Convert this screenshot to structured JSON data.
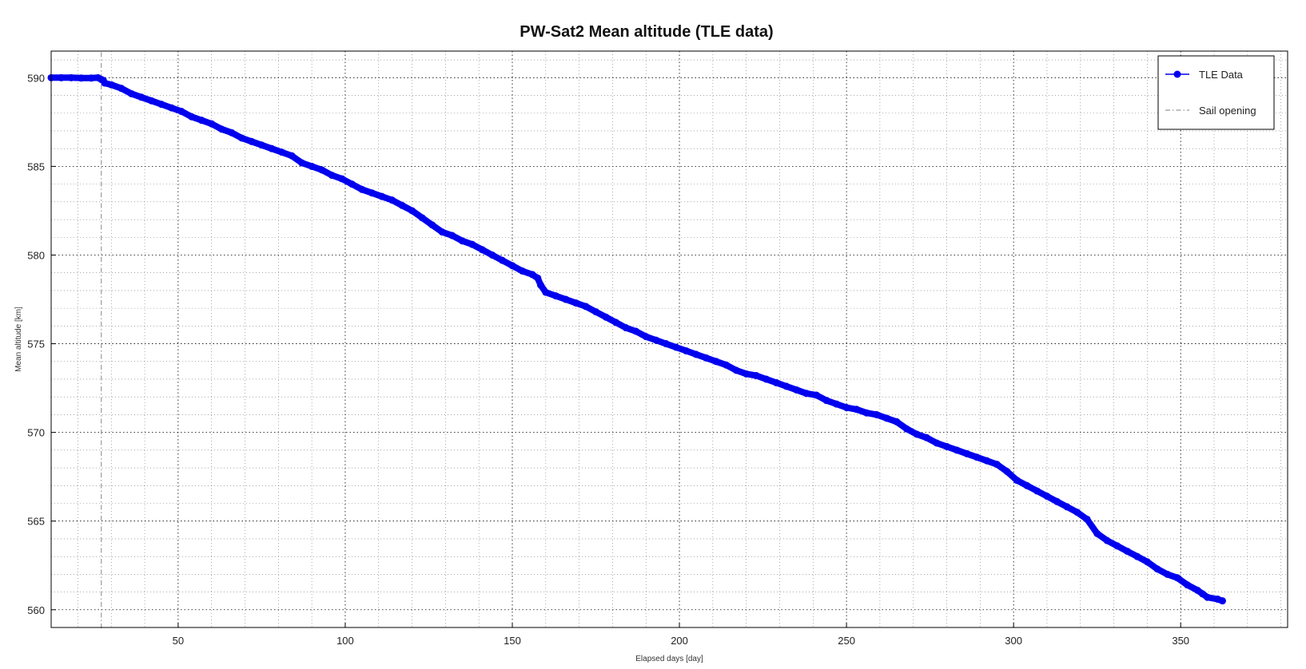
{
  "chart_data": {
    "type": "line",
    "title": "PW-Sat2 Mean altitude (TLE data)",
    "xlabel": "Elapsed days [day]",
    "ylabel": "Mean altitude [km]",
    "xlim": [
      12,
      382
    ],
    "ylim": [
      559,
      591.5
    ],
    "xticks": [
      50,
      100,
      150,
      200,
      250,
      300,
      350
    ],
    "yticks": [
      560,
      565,
      570,
      575,
      580,
      585,
      590
    ],
    "x_minor_step": 10,
    "y_minor_step": 1,
    "grid": true,
    "legend_position": "top-right",
    "series": [
      {
        "name": "TLE Data",
        "color": "#0000ee",
        "marker": "circle",
        "x": [
          12,
          15,
          18,
          21,
          24,
          26,
          27,
          27.6,
          28,
          30,
          33,
          36,
          39,
          42,
          45,
          48,
          51,
          54,
          57,
          60,
          63,
          66,
          69,
          72,
          75,
          78,
          81,
          84,
          87,
          90,
          93,
          96,
          99,
          102,
          105,
          108,
          111,
          114,
          117,
          120,
          123,
          126,
          129,
          132,
          135,
          138,
          141,
          144,
          147,
          150,
          153,
          156,
          157.6,
          158.5,
          160,
          163,
          166,
          169,
          172,
          175,
          178,
          181,
          184,
          187,
          190,
          193,
          196,
          199,
          202,
          205,
          208,
          211,
          214,
          217,
          220,
          223,
          226,
          229,
          232,
          235,
          238,
          241,
          244,
          247,
          250,
          253,
          256,
          259,
          262,
          265,
          268,
          271,
          274,
          277,
          280,
          283,
          286,
          289,
          292,
          295,
          298,
          301,
          304,
          307,
          310,
          313,
          316,
          319,
          322,
          325,
          328,
          331,
          334,
          337,
          340,
          343,
          346,
          349,
          352,
          355,
          356.5,
          358,
          361,
          362.5
        ],
        "y": [
          590.0,
          590.0,
          590.0,
          589.98,
          589.98,
          590.0,
          589.9,
          589.85,
          589.7,
          589.6,
          589.4,
          589.1,
          588.9,
          588.7,
          588.5,
          588.3,
          588.1,
          587.8,
          587.6,
          587.4,
          587.1,
          586.9,
          586.6,
          586.4,
          586.2,
          586.0,
          585.8,
          585.6,
          585.2,
          585.0,
          584.8,
          584.5,
          584.3,
          584.0,
          583.7,
          583.5,
          583.3,
          583.1,
          582.8,
          582.5,
          582.1,
          581.7,
          581.3,
          581.1,
          580.8,
          580.6,
          580.3,
          580.0,
          579.7,
          579.4,
          579.1,
          578.9,
          578.7,
          578.3,
          577.9,
          577.7,
          577.5,
          577.3,
          577.1,
          576.8,
          576.5,
          576.2,
          575.9,
          575.7,
          575.4,
          575.2,
          575.0,
          574.8,
          574.6,
          574.4,
          574.2,
          574.0,
          573.8,
          573.5,
          573.3,
          573.2,
          573.0,
          572.8,
          572.6,
          572.4,
          572.2,
          572.1,
          571.8,
          571.6,
          571.4,
          571.3,
          571.1,
          571.0,
          570.8,
          570.6,
          570.2,
          569.9,
          569.7,
          569.4,
          569.2,
          569.0,
          568.8,
          568.6,
          568.4,
          568.2,
          567.8,
          567.3,
          567.0,
          566.7,
          566.4,
          566.1,
          565.8,
          565.5,
          565.1,
          564.3,
          563.9,
          563.6,
          563.3,
          563.0,
          562.7,
          562.3,
          562.0,
          561.8,
          561.4,
          561.1,
          560.9,
          560.7,
          560.6,
          560.5
        ]
      },
      {
        "name": "Sail opening",
        "color": "#999999",
        "style": "dash-dot",
        "x": [
          27,
          27
        ],
        "y": [
          559,
          591.5
        ]
      }
    ]
  }
}
